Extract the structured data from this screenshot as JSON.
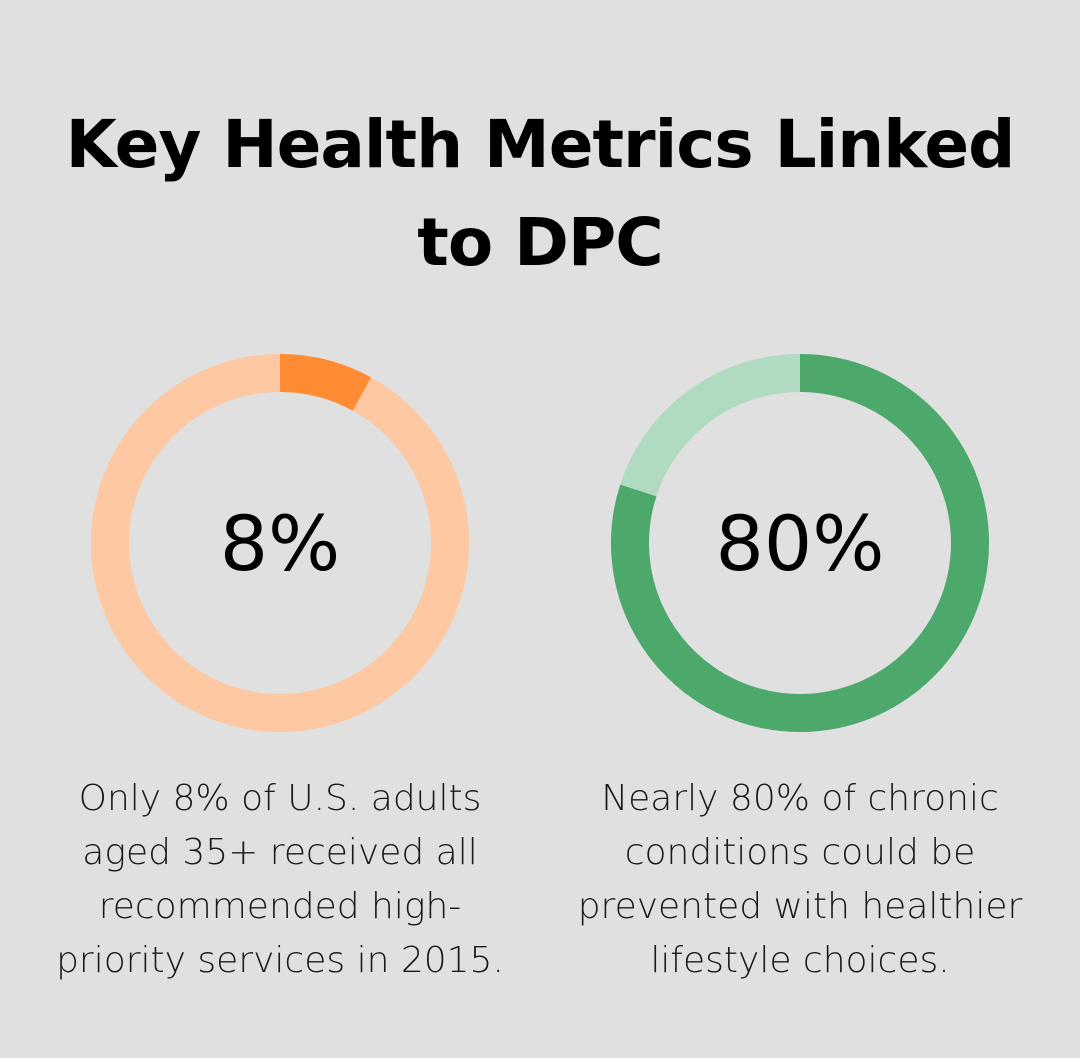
{
  "title": "Key Health Metrics Linked to DPC",
  "chart_data": [
    {
      "type": "pie",
      "value": 8,
      "label": "8%",
      "caption": "Only 8% of U.S. adults aged 35+ received all recommended high-priority services in 2015.",
      "colors": {
        "filled": "#ff8c33",
        "remainder": "#fdc8a2"
      }
    },
    {
      "type": "pie",
      "value": 80,
      "label": "80%",
      "caption": "Nearly 80% of chronic conditions could be prevented with healthier lifestyle choices.",
      "colors": {
        "filled": "#4da86b",
        "remainder": "#b1dbc1"
      }
    }
  ]
}
